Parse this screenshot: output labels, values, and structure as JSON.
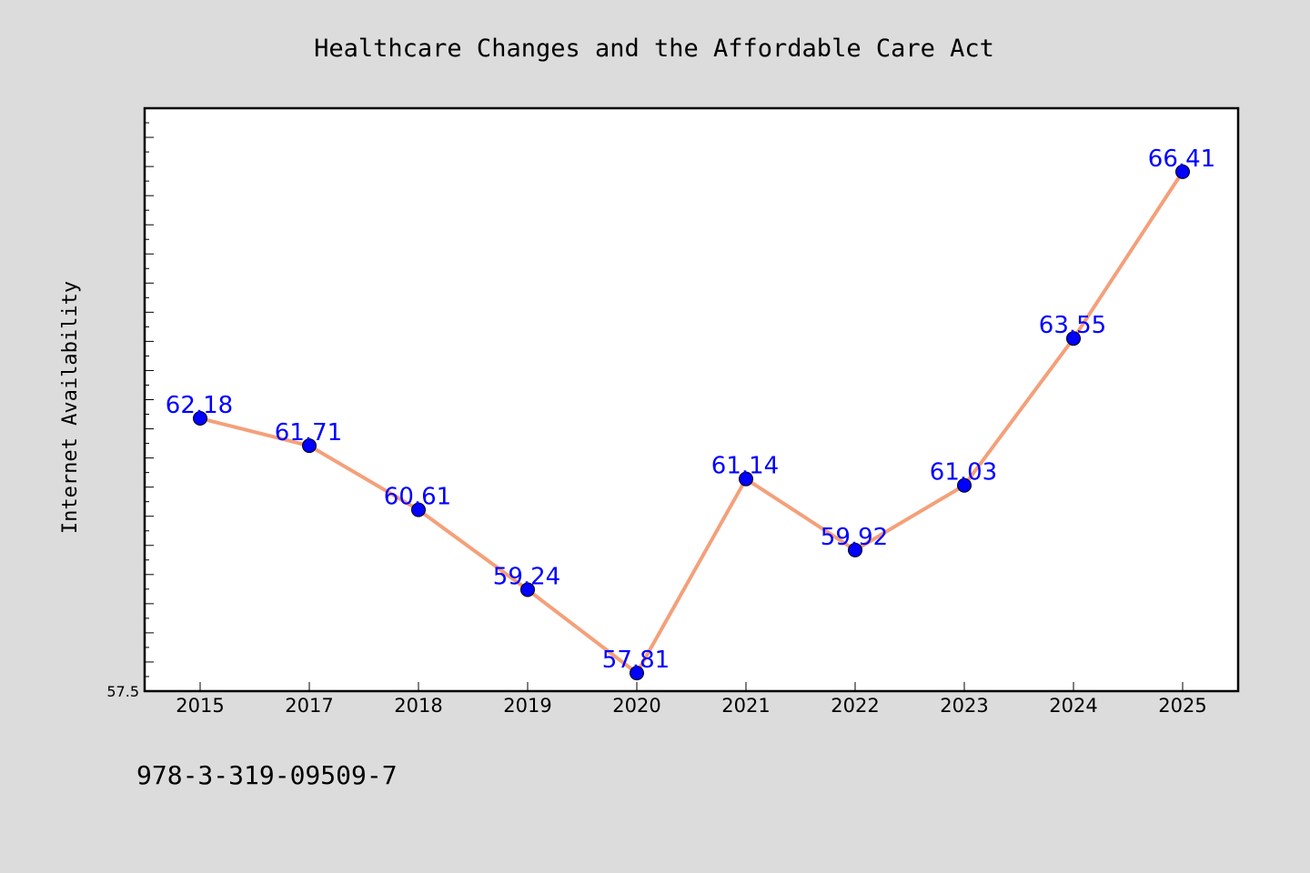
{
  "chart_data": {
    "type": "line",
    "title": "Healthcare Changes and the Affordable Care Act",
    "xlabel": "",
    "ylabel": "Internet Availability",
    "categories": [
      "2015",
      "2017",
      "2018",
      "2019",
      "2020",
      "2021",
      "2022",
      "2023",
      "2024",
      "2025"
    ],
    "series": [
      {
        "values": [
          62.18,
          61.71,
          60.61,
          59.24,
          57.81,
          61.14,
          59.92,
          61.03,
          63.55,
          66.41
        ]
      }
    ],
    "data_labels": [
      "62.18",
      "61.71",
      "60.61",
      "59.24",
      "57.81",
      "61.14",
      "59.92",
      "61.03",
      "63.55",
      "66.41"
    ],
    "ylim": [
      57.5,
      67.5
    ],
    "y_tick_labels": [
      "57.5"
    ],
    "grid": false,
    "legend": "none",
    "colors": {
      "line": "#f4a07a",
      "marker": "#0000ff",
      "data_label": "#0000ff",
      "background": "#dcdcdc",
      "plot_background": "#ffffff"
    }
  },
  "footer": {
    "isbn": "978-3-319-09509-7"
  }
}
